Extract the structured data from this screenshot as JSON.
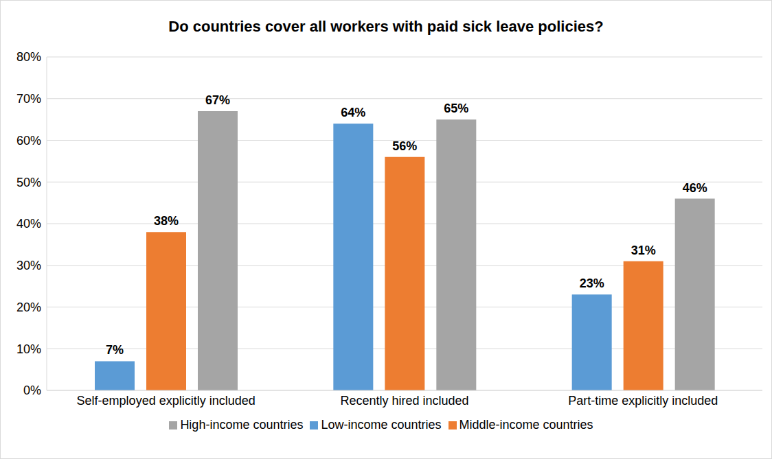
{
  "chart_data": {
    "type": "bar",
    "title": "Do countries cover all workers with paid sick leave policies?",
    "categories": [
      "Self-employed explicitly included",
      "Recently hired included",
      "Part-time explicitly included"
    ],
    "series": [
      {
        "name": "Low-income countries",
        "color": "#5b9bd5",
        "values": [
          7,
          64,
          23
        ],
        "value_labels": [
          "7%",
          "64%",
          "23%"
        ]
      },
      {
        "name": "Middle-income countries",
        "color": "#ed7d31",
        "values": [
          38,
          56,
          31
        ],
        "value_labels": [
          "38%",
          "56%",
          "31%"
        ]
      },
      {
        "name": "High-income countries",
        "color": "#a5a5a5",
        "values": [
          67,
          65,
          46
        ],
        "value_labels": [
          "67%",
          "65%",
          "46%"
        ]
      }
    ],
    "ylim": [
      0,
      80
    ],
    "yticks": [
      {
        "value": 0,
        "label": "0%"
      },
      {
        "value": 10,
        "label": "10%"
      },
      {
        "value": 20,
        "label": "20%"
      },
      {
        "value": 30,
        "label": "30%"
      },
      {
        "value": 40,
        "label": "40%"
      },
      {
        "value": 50,
        "label": "50%"
      },
      {
        "value": 60,
        "label": "60%"
      },
      {
        "value": 70,
        "label": "70%"
      },
      {
        "value": 80,
        "label": "80%"
      }
    ],
    "grid": true,
    "legend": "bottom",
    "data_labels": true
  }
}
